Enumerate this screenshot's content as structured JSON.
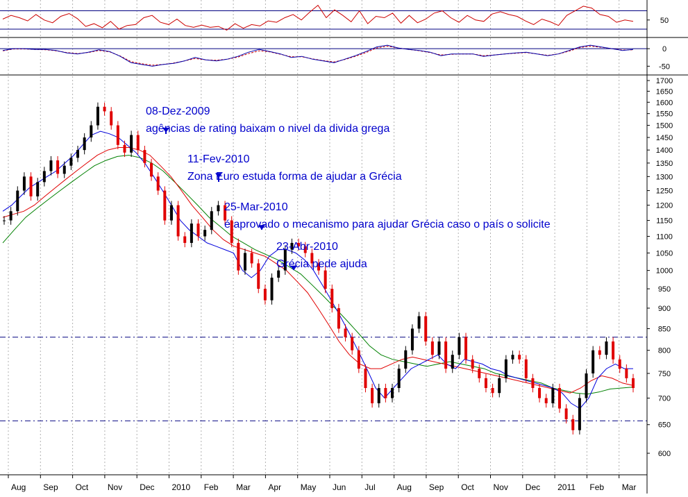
{
  "colors": {
    "up_candle": "#000000",
    "down_candle": "#e00000",
    "ma_short": "#0000dd",
    "ma_mid": "#e00000",
    "ma_long": "#008000",
    "ref_line": "#000080",
    "annotation": "#0000cc",
    "rsi": "#cc0000",
    "macd": "#0000aa",
    "macd_signal": "#cc0000",
    "grid": "#b0b0b0"
  },
  "chart_data": [
    {
      "type": "line",
      "panel": "rsi",
      "ylim": [
        24,
        92
      ],
      "y_ticks": [
        {
          "value": 50,
          "label": "50"
        }
      ],
      "reference_lines": [
        70,
        30
      ],
      "series": [
        {
          "values": [
            52,
            60,
            55,
            48,
            62,
            50,
            44,
            58,
            64,
            53,
            36,
            42,
            33,
            47,
            30,
            38,
            40,
            55,
            60,
            45,
            40,
            52,
            38,
            34,
            39,
            34,
            36,
            28,
            42,
            32,
            40,
            37,
            48,
            45,
            55,
            62,
            50,
            67,
            82,
            55,
            72,
            60,
            46,
            70,
            42,
            58,
            55,
            65,
            43,
            60,
            44,
            52,
            65,
            70,
            55,
            45,
            60,
            50,
            47,
            63,
            68,
            62,
            58,
            48,
            40,
            52,
            46,
            38,
            60,
            70,
            80,
            76,
            62,
            58,
            45,
            50,
            47
          ]
        }
      ]
    },
    {
      "type": "line",
      "panel": "macd",
      "ylim": [
        -75,
        30
      ],
      "y_ticks": [
        {
          "value": 0,
          "label": "0"
        },
        {
          "value": -50,
          "label": "-50"
        }
      ],
      "reference_lines": [
        0
      ],
      "series": [
        {
          "values": [
            -5,
            0,
            0,
            -2,
            -2,
            -5,
            -12,
            -15,
            -10,
            -3,
            -8,
            -22,
            -40,
            -45,
            -50,
            -45,
            -42,
            -35,
            -25,
            -32,
            -35,
            -30,
            -22,
            -10,
            -2,
            -8,
            -15,
            -25,
            -22,
            -30,
            -35,
            -40,
            -30,
            -20,
            -8,
            5,
            10,
            2,
            -2,
            -5,
            -10,
            -20,
            -15,
            -15,
            -15,
            -22,
            -18,
            -15,
            -12,
            -10,
            -15,
            -20,
            -15,
            -5,
            5,
            10,
            5,
            0,
            -5,
            -2
          ]
        },
        {
          "values": [
            -6,
            -1,
            -1,
            -2,
            -3,
            -6,
            -11,
            -14,
            -11,
            -5,
            -9,
            -21,
            -37,
            -43,
            -47,
            -45,
            -41,
            -35,
            -28,
            -32,
            -33,
            -30,
            -24,
            -14,
            -6,
            -9,
            -16,
            -23,
            -23,
            -29,
            -34,
            -38,
            -31,
            -22,
            -11,
            2,
            7,
            2,
            -2,
            -6,
            -11,
            -18,
            -16,
            -15,
            -15,
            -20,
            -18,
            -15,
            -13,
            -11,
            -15,
            -19,
            -15,
            -7,
            3,
            7,
            4,
            0,
            -4,
            -3
          ]
        }
      ]
    },
    {
      "type": "candlestick",
      "panel": "price",
      "ylim": [
        565,
        1720
      ],
      "y_ticks": [
        {
          "value": 1700,
          "label": "1700"
        },
        {
          "value": 1650,
          "label": "1650"
        },
        {
          "value": 1600,
          "label": "1600"
        },
        {
          "value": 1550,
          "label": "1550"
        },
        {
          "value": 1500,
          "label": "1500"
        },
        {
          "value": 1450,
          "label": "1450"
        },
        {
          "value": 1400,
          "label": "1400"
        },
        {
          "value": 1350,
          "label": "1350"
        },
        {
          "value": 1300,
          "label": "1300"
        },
        {
          "value": 1250,
          "label": "1250"
        },
        {
          "value": 1200,
          "label": "1200"
        },
        {
          "value": 1150,
          "label": "1150"
        },
        {
          "value": 1100,
          "label": "1100"
        },
        {
          "value": 1050,
          "label": "1050"
        },
        {
          "value": 1000,
          "label": "1000"
        },
        {
          "value": 950,
          "label": "950"
        },
        {
          "value": 900,
          "label": "900"
        },
        {
          "value": 850,
          "label": "850"
        },
        {
          "value": 800,
          "label": "800"
        },
        {
          "value": 750,
          "label": "750"
        },
        {
          "value": 700,
          "label": "700"
        },
        {
          "value": 650,
          "label": "650"
        },
        {
          "value": 600,
          "label": "600"
        }
      ],
      "x_labels": [
        "Aug",
        "Sep",
        "Oct",
        "Nov",
        "Dec",
        "2010",
        "Feb",
        "Mar",
        "Apr",
        "May",
        "Jun",
        "Jul",
        "Aug",
        "Sep",
        "Oct",
        "Nov",
        "Dec",
        "2011",
        "Feb",
        "Mar"
      ],
      "support_resistance": [
        830,
        657
      ],
      "close": [
        1150,
        1180,
        1250,
        1300,
        1230,
        1280,
        1320,
        1360,
        1310,
        1340,
        1370,
        1400,
        1450,
        1500,
        1580,
        1560,
        1500,
        1420,
        1390,
        1460,
        1400,
        1350,
        1300,
        1250,
        1150,
        1200,
        1100,
        1080,
        1140,
        1100,
        1120,
        1180,
        1200,
        1150,
        1080,
        1000,
        1050,
        1020,
        950,
        920,
        980,
        1000,
        1060,
        1080,
        1070,
        1050,
        1020,
        1000,
        950,
        900,
        850,
        830,
        800,
        760,
        720,
        690,
        720,
        700,
        720,
        760,
        800,
        850,
        880,
        820,
        790,
        820,
        760,
        790,
        830,
        780,
        760,
        740,
        720,
        710,
        740,
        780,
        790,
        780,
        740,
        720,
        700,
        690,
        720,
        680,
        660,
        640,
        700,
        750,
        800,
        790,
        820,
        780,
        760,
        740,
        720
      ],
      "ma_short": [
        1180,
        1200,
        1230,
        1260,
        1280,
        1300,
        1320,
        1350,
        1380,
        1420,
        1460,
        1475,
        1465,
        1450,
        1420,
        1390,
        1350,
        1300,
        1250,
        1200,
        1150,
        1120,
        1100,
        1080,
        1070,
        1060,
        1050,
        1000,
        980,
        1000,
        1040,
        1060,
        1060,
        1050,
        1030,
        1000,
        960,
        920,
        880,
        840,
        800,
        760,
        720,
        700,
        720,
        740,
        760,
        770,
        780,
        790,
        770,
        760,
        780,
        775,
        770,
        760,
        755,
        745,
        740,
        735,
        730,
        725,
        720,
        710,
        690,
        680,
        700,
        740,
        760,
        770,
        760,
        760
      ],
      "ma_mid": [
        1160,
        1170,
        1180,
        1200,
        1230,
        1260,
        1290,
        1320,
        1350,
        1380,
        1400,
        1410,
        1410,
        1400,
        1380,
        1340,
        1300,
        1250,
        1200,
        1160,
        1120,
        1090,
        1070,
        1060,
        1050,
        1040,
        1020,
        1000,
        970,
        940,
        900,
        860,
        820,
        790,
        770,
        760,
        760,
        770,
        780,
        785,
        780,
        775,
        770,
        765,
        760,
        755,
        750,
        745,
        740,
        735,
        730,
        725,
        720,
        715,
        710,
        720,
        735,
        745,
        740,
        730,
        725
      ],
      "ma_long": [
        1080,
        1120,
        1160,
        1190,
        1220,
        1250,
        1280,
        1310,
        1340,
        1360,
        1375,
        1380,
        1370,
        1350,
        1320,
        1280,
        1240,
        1200,
        1160,
        1130,
        1100,
        1080,
        1060,
        1045,
        1030,
        1010,
        990,
        960,
        930,
        900,
        870,
        840,
        810,
        790,
        780,
        775,
        770,
        765,
        770,
        775,
        770,
        765,
        760,
        750,
        745,
        740,
        735,
        730,
        720,
        715,
        710,
        708,
        712,
        718,
        720,
        722
      ]
    }
  ],
  "annotations": [
    {
      "date": "08-Dez-2009",
      "text": "agências de rating baixam o nivel da divida grega",
      "arrow_value": 1470
    },
    {
      "date": "11-Fev-2010",
      "text": "Zona Euro estuda forma de ajudar a Grécia",
      "arrow_value": 1295
    },
    {
      "date": "25-Mar-2010",
      "text": "é aprovado o mecanismo para ajudar Grécia caso o país o solicite",
      "arrow_value": 1120
    },
    {
      "date": "23-Abr-2010",
      "text": "Grécia pede ajuda",
      "arrow_value": 1000
    }
  ]
}
